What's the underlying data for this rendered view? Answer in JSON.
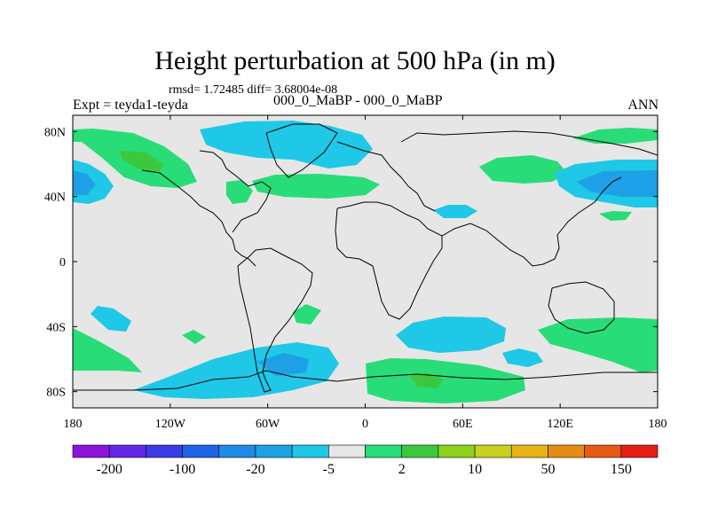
{
  "title": "Height perturbation at 500 hPa (in m)",
  "stats": "rmsd= 1.72485 diff= 3.68004e-08",
  "experiment": "Expt = teyda1-teyda",
  "case": "000_0_MaBP - 000_0_MaBP",
  "season": "ANN",
  "colors": {
    "land": "#e6e6e6",
    "cyan": "#1ec8e6",
    "cyan_dark": "#1ea0e6",
    "green": "#28dc78",
    "green_dark": "#3cc83c"
  },
  "map": {
    "lat_ticks": [
      "80N",
      "40N",
      "0",
      "40S",
      "80S"
    ],
    "lat_values": [
      80,
      40,
      0,
      -40,
      -80
    ],
    "lon_ticks": [
      "180",
      "120W",
      "60W",
      "0",
      "60E",
      "120E",
      "180"
    ],
    "lon_values": [
      -180,
      -120,
      -60,
      0,
      60,
      120,
      180
    ]
  },
  "colorbar": {
    "colors": [
      "#8c14dc",
      "#6428e6",
      "#3c3ce6",
      "#1e64e6",
      "#1e8ce6",
      "#1ea0e6",
      "#1ec8e6",
      "#e6e6e6",
      "#28dc78",
      "#3cc83c",
      "#8cd21e",
      "#c8d21e",
      "#e6b414",
      "#e68c14",
      "#e65a14",
      "#e61e14"
    ],
    "labels": [
      "-200",
      "-100",
      "-20",
      "-5",
      "2",
      "10",
      "50",
      "150"
    ],
    "label_boundaries": [
      1,
      3,
      5,
      7,
      9,
      11,
      13,
      15
    ]
  }
}
